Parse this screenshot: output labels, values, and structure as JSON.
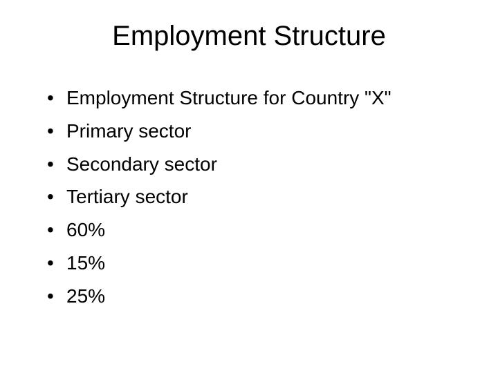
{
  "slide": {
    "title": "Employment Structure",
    "title_fontsize": 40,
    "body_fontsize": 28,
    "background_color": "#ffffff",
    "text_color": "#000000",
    "font_family": "Arial",
    "bullet_char": "•",
    "bullets": [
      "Employment Structure for Country \"X\"",
      "Primary sector",
      "Secondary sector",
      "Tertiary sector",
      "60%",
      "15%",
      "25%"
    ]
  }
}
